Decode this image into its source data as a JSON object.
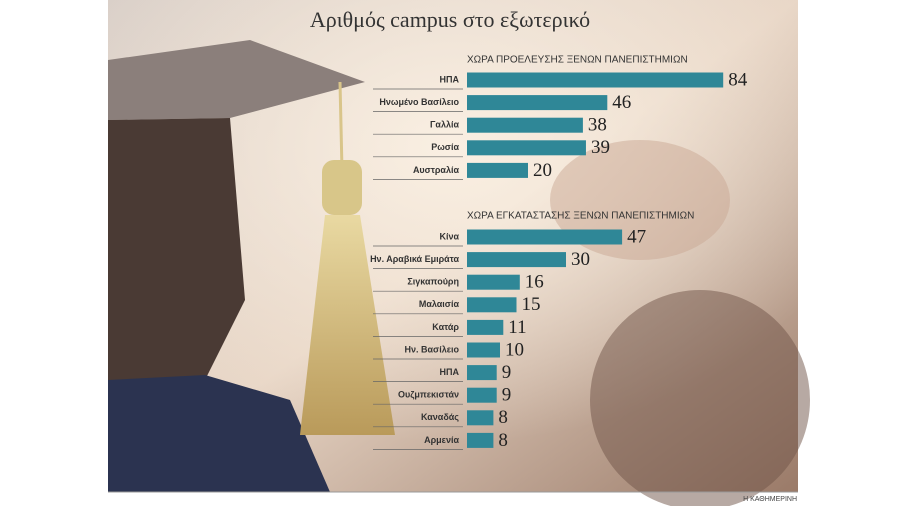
{
  "title": "Αριθμός campus στο εξωτερικό",
  "source": "Η ΚΑΘΗΜΕΡΙΝΗ",
  "chart_data": [
    {
      "type": "bar",
      "title": "ΧΩΡΑ ΠΡΟΕΛΕΥΣΗΣ ΞΕΝΩΝ ΠΑΝΕΠΙΣΤΗΜΙΩΝ",
      "categories": [
        "ΗΠΑ",
        "Ηνωμένο Βασίλειο",
        "Γαλλία",
        "Ρωσία",
        "Αυστραλία"
      ],
      "values": [
        84,
        46,
        38,
        39,
        20
      ],
      "color": "#2f8797"
    },
    {
      "type": "bar",
      "title": "ΧΩΡΑ ΕΓΚΑΤΑΣΤΑΣΗΣ ΞΕΝΩΝ ΠΑΝΕΠΙΣΤΗΜΙΩΝ",
      "categories": [
        "Κίνα",
        "Ην. Αραβικά Εμιράτα",
        "Σιγκαπούρη",
        "Μαλαισία",
        "Κατάρ",
        "Ην. Βασίλειο",
        "ΗΠΑ",
        "Ουζμπεκιστάν",
        "Καναδάς",
        "Αρμενία"
      ],
      "values": [
        47,
        30,
        16,
        15,
        11,
        10,
        9,
        9,
        8,
        8
      ],
      "color": "#2f8797"
    }
  ]
}
